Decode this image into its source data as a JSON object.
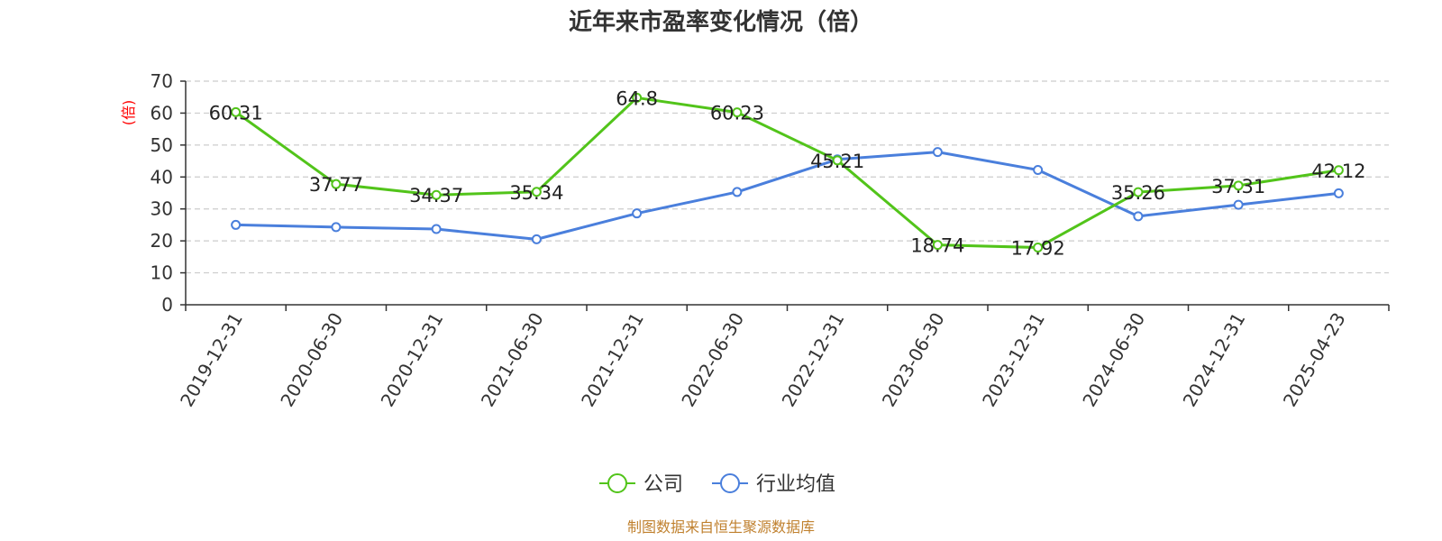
{
  "chart_data": {
    "type": "line",
    "title": "近年来市盈率变化情况（倍）",
    "ylabel": "(倍)",
    "xlabel": "",
    "categories": [
      "2019-12-31",
      "2020-06-30",
      "2020-12-31",
      "2021-06-30",
      "2021-12-31",
      "2022-06-30",
      "2022-12-31",
      "2023-06-30",
      "2023-12-31",
      "2024-06-30",
      "2024-12-31",
      "2025-04-23"
    ],
    "ylim": [
      0,
      70
    ],
    "yticks": [
      0,
      10,
      20,
      30,
      40,
      50,
      60,
      70
    ],
    "grid": true,
    "legend_position": "bottom",
    "series": [
      {
        "name": "公司",
        "color": "#52c41a",
        "values": [
          60.31,
          37.77,
          34.37,
          35.34,
          64.8,
          60.23,
          45.21,
          18.74,
          17.92,
          35.26,
          37.31,
          42.12
        ],
        "labels": [
          "60.31",
          "37.77",
          "34.37",
          "35.34",
          "64.8",
          "60.23",
          "45.21",
          "18.74",
          "17.92",
          "35.26",
          "37.31",
          "42.12"
        ]
      },
      {
        "name": "行业均值",
        "color": "#4a7fdc",
        "values": [
          25.0,
          24.3,
          23.7,
          20.5,
          28.6,
          35.3,
          45.5,
          47.8,
          42.2,
          27.7,
          31.3,
          34.9
        ]
      }
    ]
  },
  "footer": {
    "source": "制图数据来自恒生聚源数据库"
  }
}
